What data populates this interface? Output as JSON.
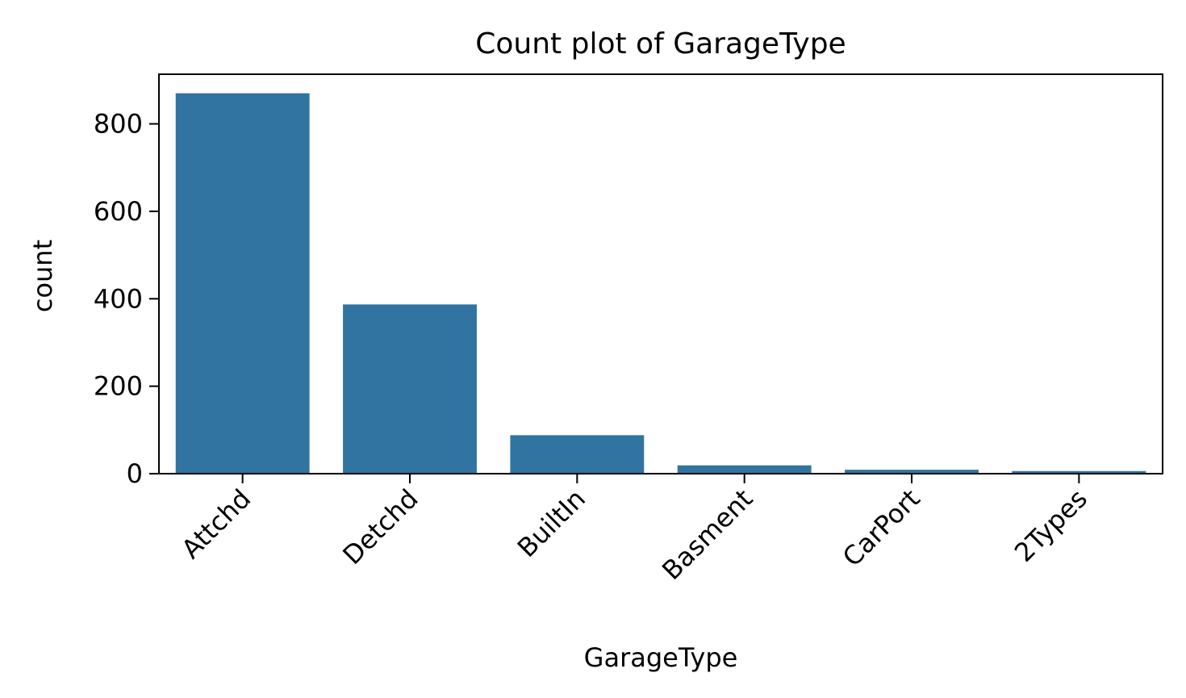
{
  "chart_data": {
    "type": "bar",
    "title": "Count plot of GarageType",
    "xlabel": "GarageType",
    "ylabel": "count",
    "categories": [
      "Attchd",
      "Detchd",
      "BuiltIn",
      "Basment",
      "CarPort",
      "2Types"
    ],
    "values": [
      870,
      387,
      88,
      19,
      9,
      6
    ],
    "ylim": [
      0,
      913.5
    ],
    "yticks": [
      0,
      200,
      400,
      600,
      800
    ],
    "bar_color": "#3274a1",
    "grid": false,
    "legend": "none"
  }
}
